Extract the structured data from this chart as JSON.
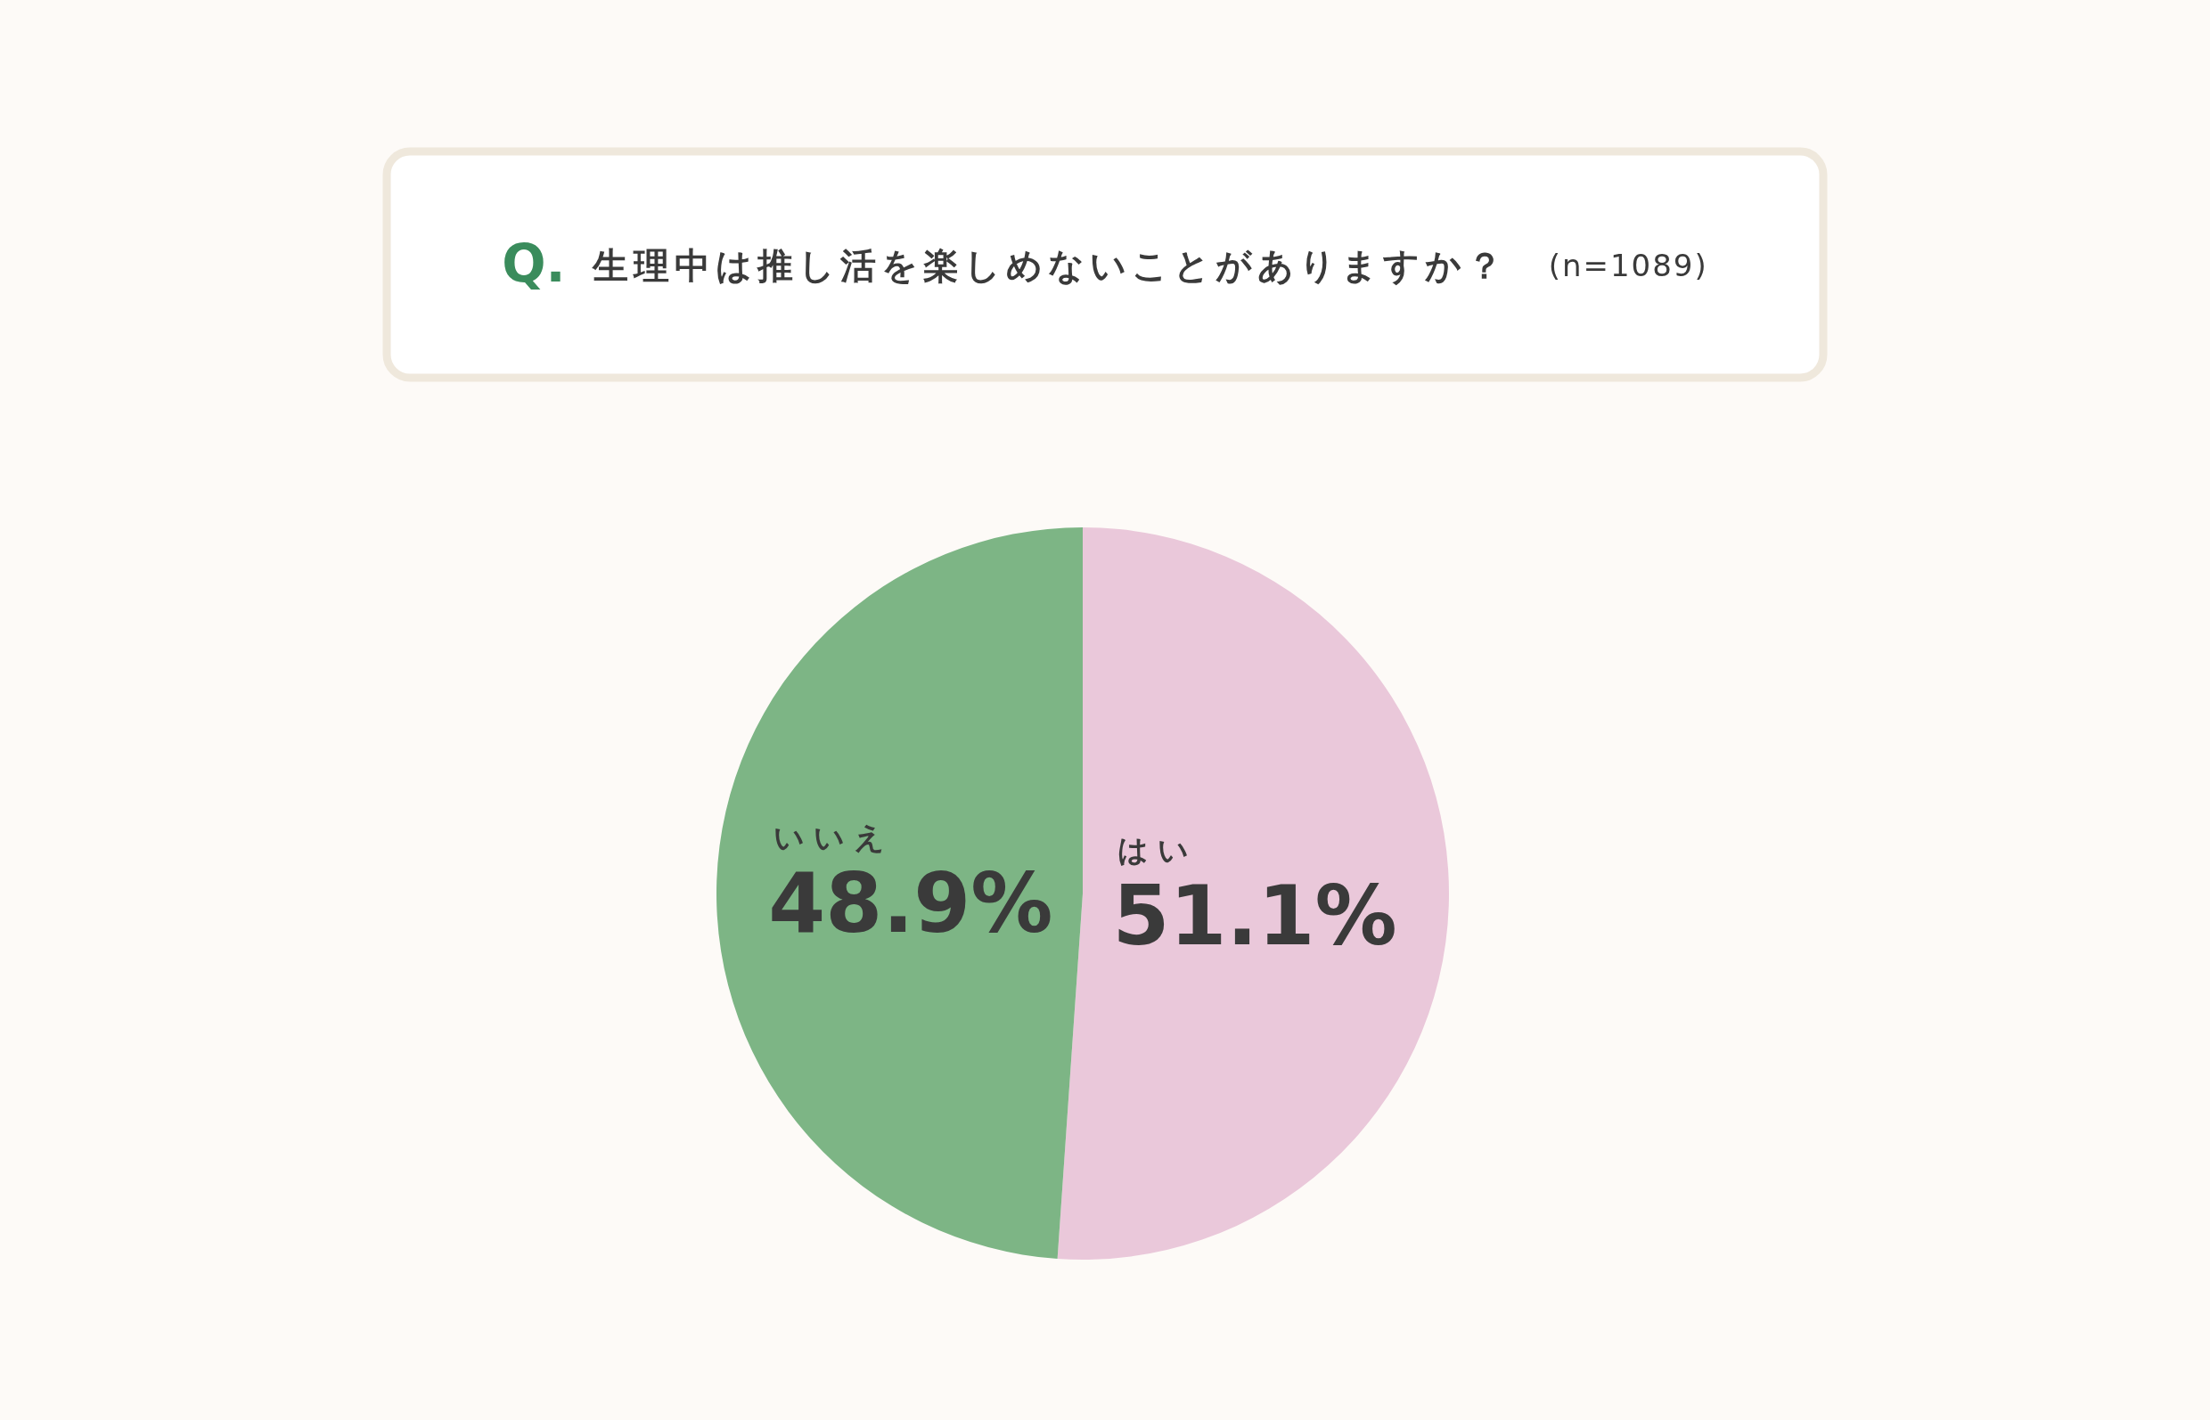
{
  "chart_data": {
    "type": "pie",
    "title": "生理中は推し活を楽しめないことがありますか？",
    "subtitle": "(n=1089)",
    "annotations": [
      "Q."
    ],
    "categories": [
      "はい",
      "いいえ"
    ],
    "values": [
      51.1,
      48.9
    ],
    "colors": [
      "#eac8da",
      "#7db585"
    ],
    "value_labels": [
      "51.1%",
      "48.9%"
    ]
  }
}
